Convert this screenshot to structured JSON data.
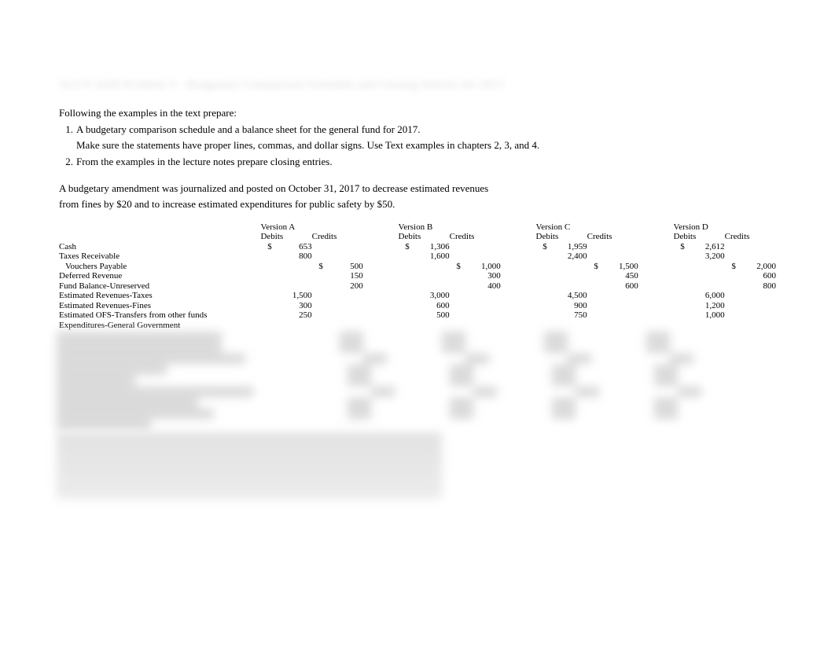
{
  "blurred_title": "ACCT 4320 Problem 2 - Budgetary Comparison Schedule and Closing Entries for 2017",
  "instructions": {
    "intro": "Following the examples in the text prepare:",
    "item1": "A budgetary comparison schedule and a balance sheet for the general fund for 2017.",
    "item1_note": "Make sure the statements have proper lines, commas, and dollar signs. Use Text examples in chapters 2, 3, and 4.",
    "item2": "From the examples in the lecture notes prepare closing entries."
  },
  "amendment": {
    "line1": "A budgetary amendment was journalized and posted on October 31, 2017 to decrease estimated revenues",
    "line2": "from fines by $20 and to increase estimated expenditures for public safety by $50."
  },
  "versions": [
    {
      "name": "Version A",
      "debits_label": "Debits",
      "credits_label": "Credits"
    },
    {
      "name": "Version B",
      "debits_label": "Debits",
      "credits_label": "Credits"
    },
    {
      "name": "Version C",
      "debits_label": "Debits",
      "credits_label": "Credits"
    },
    {
      "name": "Version D",
      "debits_label": "Debits",
      "credits_label": "Credits"
    }
  ],
  "rows": [
    {
      "label": "Cash",
      "indent": 0,
      "A": {
        "d": "653",
        "d_sym": "$",
        "c": ""
      },
      "B": {
        "d": "1,306",
        "d_sym": "$",
        "c": ""
      },
      "C": {
        "d": "1,959",
        "d_sym": "$",
        "c": ""
      },
      "D": {
        "d": "2,612",
        "d_sym": "$",
        "c": ""
      }
    },
    {
      "label": "Taxes Receivable",
      "indent": 0,
      "A": {
        "d": "800",
        "c": ""
      },
      "B": {
        "d": "1,600",
        "c": ""
      },
      "C": {
        "d": "2,400",
        "c": ""
      },
      "D": {
        "d": "3,200",
        "c": ""
      }
    },
    {
      "label": "Vouchers Payable",
      "indent": 1,
      "A": {
        "d": "",
        "c": "500",
        "c_sym": "$"
      },
      "B": {
        "d": "",
        "c": "1,000",
        "c_sym": "$"
      },
      "C": {
        "d": "",
        "c": "1,500",
        "c_sym": "$"
      },
      "D": {
        "d": "",
        "c": "2,000",
        "c_sym": "$"
      }
    },
    {
      "label": "Deferred Revenue",
      "indent": 0,
      "A": {
        "d": "",
        "c": "150"
      },
      "B": {
        "d": "",
        "c": "300"
      },
      "C": {
        "d": "",
        "c": "450"
      },
      "D": {
        "d": "",
        "c": "600"
      }
    },
    {
      "label": "Fund Balance-Unreserved",
      "indent": 0,
      "A": {
        "d": "",
        "c": "200"
      },
      "B": {
        "d": "",
        "c": "400"
      },
      "C": {
        "d": "",
        "c": "600"
      },
      "D": {
        "d": "",
        "c": "800"
      }
    },
    {
      "label": "Estimated Revenues-Taxes",
      "indent": 0,
      "A": {
        "d": "1,500",
        "c": ""
      },
      "B": {
        "d": "3,000",
        "c": ""
      },
      "C": {
        "d": "4,500",
        "c": ""
      },
      "D": {
        "d": "6,000",
        "c": ""
      }
    },
    {
      "label": "Estimated Revenues-Fines",
      "indent": 0,
      "A": {
        "d": "300",
        "c": ""
      },
      "B": {
        "d": "600",
        "c": ""
      },
      "C": {
        "d": "900",
        "c": ""
      },
      "D": {
        "d": "1,200",
        "c": ""
      }
    },
    {
      "label": "Estimated OFS-Transfers from other funds",
      "indent": 0,
      "A": {
        "d": "250",
        "c": ""
      },
      "B": {
        "d": "500",
        "c": ""
      },
      "C": {
        "d": "750",
        "c": ""
      },
      "D": {
        "d": "1,000",
        "c": ""
      }
    },
    {
      "label": "Expenditures-General Government",
      "indent": 0,
      "A": {
        "d": "",
        "c": ""
      },
      "B": {
        "d": "",
        "c": ""
      },
      "C": {
        "d": "",
        "c": ""
      },
      "D": {
        "d": "",
        "c": ""
      }
    }
  ],
  "colors": {
    "text": "#000000",
    "background": "#ffffff",
    "blur_gray": "#d8d8d8"
  },
  "typography": {
    "body_family": "Times New Roman",
    "body_size_pt": 10,
    "instruction_size_pt": 10
  }
}
